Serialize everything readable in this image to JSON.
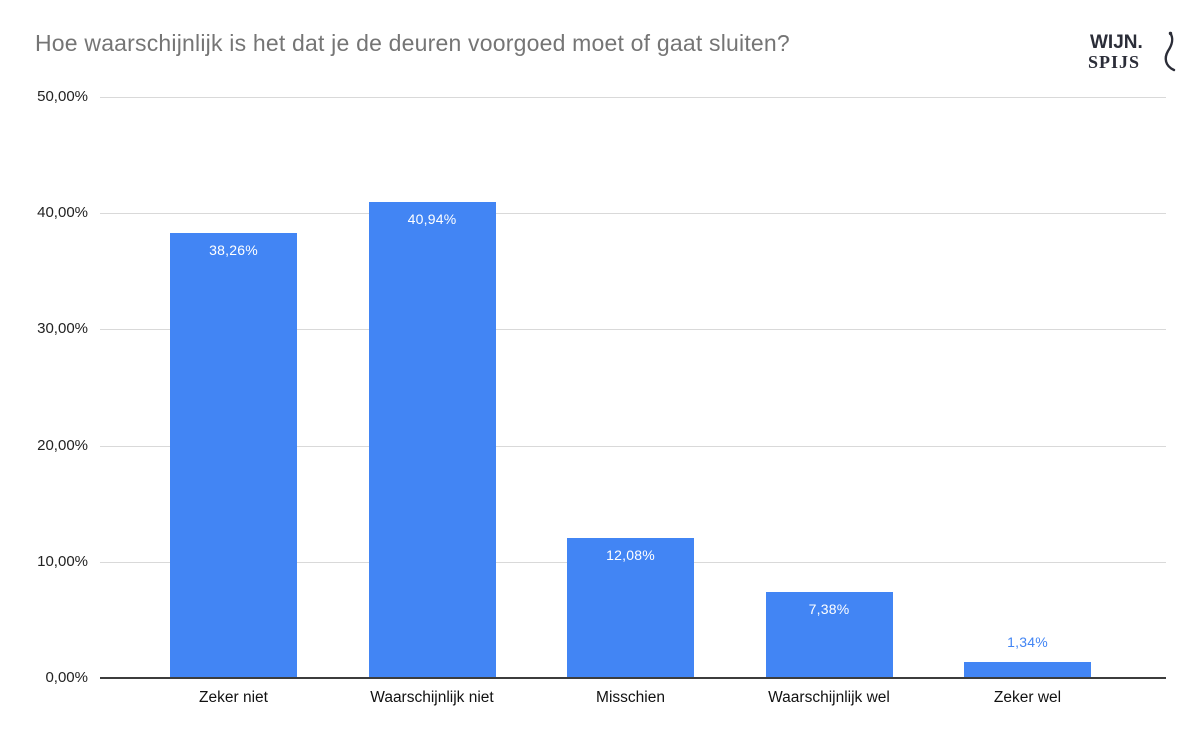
{
  "title": "Hoe waarschijnlijk is het dat je de deuren voorgoed moet of gaat sluiten?",
  "logo": {
    "line1": "WIJN.",
    "line2": "SPIJS"
  },
  "colors": {
    "background": "#ffffff",
    "title_text": "#757575",
    "axis_text": "#222222",
    "gridline": "#d9d9d9",
    "baseline": "#3c3c3c",
    "bar": "#4285f4",
    "value_label_inside": "#ffffff",
    "value_label_outside": "#4285f4",
    "logo": "#2b2d38"
  },
  "chart_data": {
    "type": "bar",
    "title": "Hoe waarschijnlijk is het dat je de deuren voorgoed moet of gaat sluiten?",
    "categories": [
      "Zeker niet",
      "Waarschijnlijk niet",
      "Misschien",
      "Waarschijnlijk wel",
      "Zeker wel"
    ],
    "values": [
      38.26,
      40.94,
      12.08,
      7.38,
      1.34
    ],
    "value_labels": [
      "38,26%",
      "40,94%",
      "12,08%",
      "7,38%",
      "1,34%"
    ],
    "xlabel": "",
    "ylabel": "",
    "ylim": [
      0,
      50
    ],
    "y_ticks": [
      {
        "value": 0,
        "label": "0,00%"
      },
      {
        "value": 10,
        "label": "10,00%"
      },
      {
        "value": 20,
        "label": "20,00%"
      },
      {
        "value": 30,
        "label": "30,00%"
      },
      {
        "value": 40,
        "label": "40,00%"
      },
      {
        "value": 50,
        "label": "50,00%"
      }
    ],
    "grid": true,
    "legend_position": "none",
    "series_name": "",
    "bar_color": "#4285f4"
  }
}
